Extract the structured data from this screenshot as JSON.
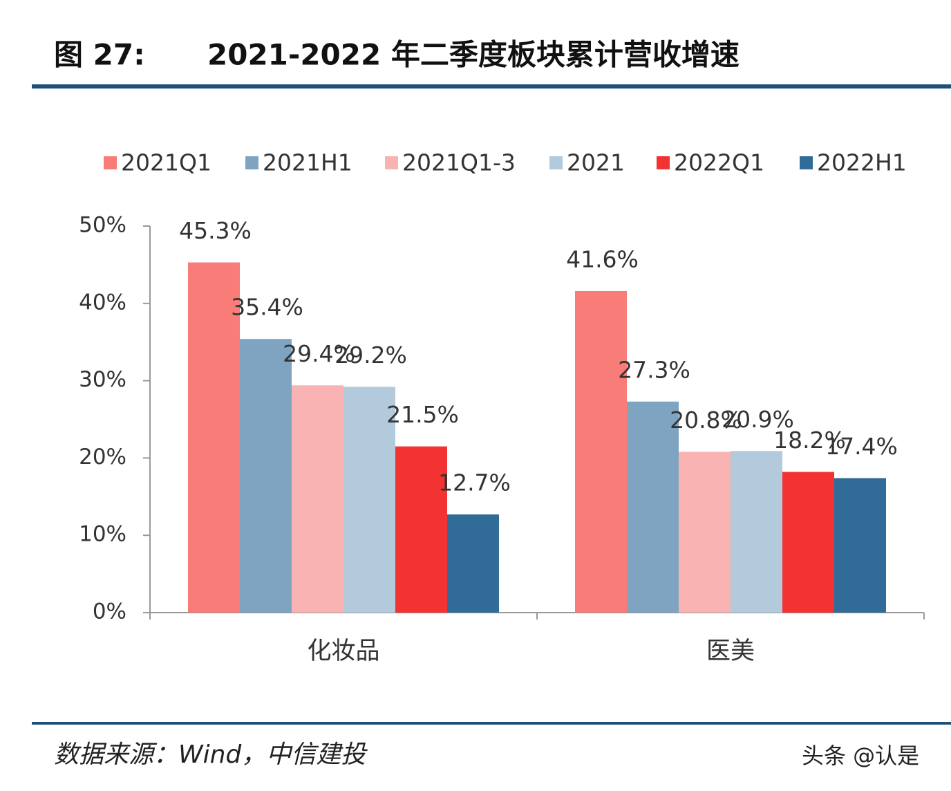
{
  "chart_data": {
    "type": "bar",
    "figure_label": "图 27:",
    "title": "2021-2022 年二季度板块累计营收增速",
    "source": "数据来源：Wind，中信建投",
    "watermark": "头条 @认是",
    "categories": [
      "化妆品",
      "医美"
    ],
    "series": [
      {
        "name": "2021Q1",
        "color": "#f87c78",
        "values": [
          45.3,
          41.6
        ],
        "value_labels": [
          "45.3%",
          "41.6%"
        ]
      },
      {
        "name": "2021H1",
        "color": "#7fa4c2",
        "values": [
          35.4,
          27.3
        ],
        "value_labels": [
          "35.4%",
          "27.3%"
        ]
      },
      {
        "name": "2021Q1-3",
        "color": "#f9b3b2",
        "values": [
          29.4,
          20.8
        ],
        "value_labels": [
          "29.4%",
          "20.8%"
        ]
      },
      {
        "name": "2021",
        "color": "#b3c9dc",
        "values": [
          29.2,
          20.9
        ],
        "value_labels": [
          "29.2%",
          "20.9%"
        ]
      },
      {
        "name": "2022Q1",
        "color": "#f33232",
        "values": [
          21.5,
          18.2
        ],
        "value_labels": [
          "21.5%",
          "18.2%"
        ]
      },
      {
        "name": "2022H1",
        "color": "#316b98",
        "values": [
          12.7,
          17.4
        ],
        "value_labels": [
          "12.7%",
          "17.4%"
        ]
      }
    ],
    "ylim": [
      0,
      50
    ],
    "yticks": [
      {
        "value": 0,
        "label": "0%"
      },
      {
        "value": 10,
        "label": "10%"
      },
      {
        "value": 20,
        "label": "20%"
      },
      {
        "value": 30,
        "label": "30%"
      },
      {
        "value": 40,
        "label": "40%"
      },
      {
        "value": 50,
        "label": "50%"
      }
    ],
    "legend": "top"
  }
}
